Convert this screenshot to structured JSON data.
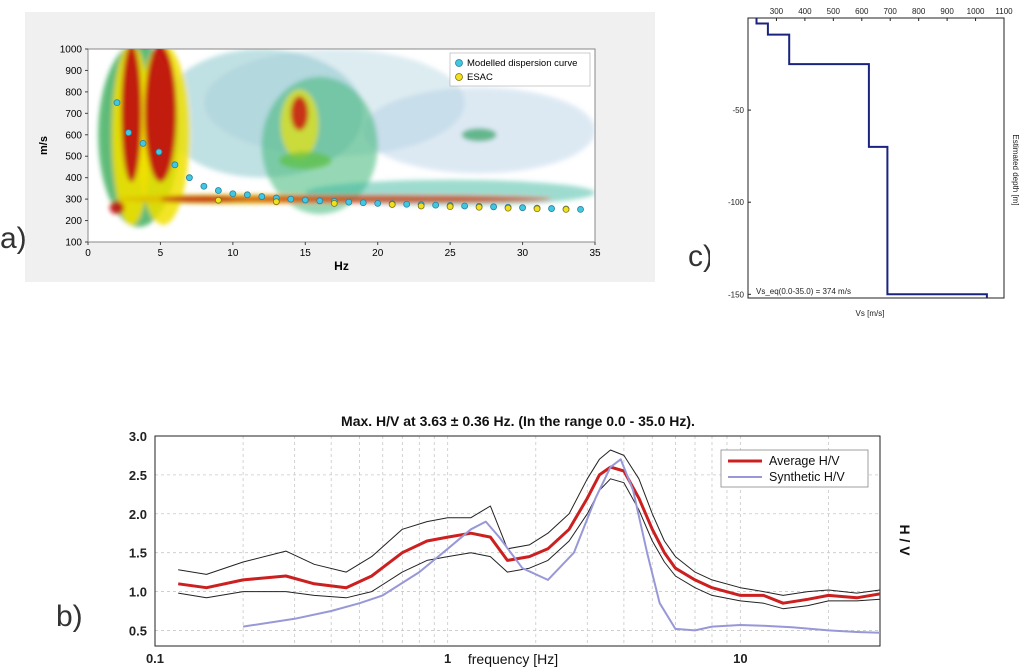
{
  "panels": {
    "a": "a)",
    "b": "b)",
    "c": "c)"
  },
  "chart_data": [
    {
      "id": "a",
      "type": "heatmap",
      "xlabel": "Hz",
      "ylabel": "m/s",
      "xlim": [
        0,
        35
      ],
      "ylim": [
        100,
        1000
      ],
      "xticks": [
        0,
        5,
        10,
        15,
        20,
        25,
        30,
        35
      ],
      "yticks": [
        100,
        200,
        300,
        400,
        500,
        600,
        700,
        800,
        900,
        1000
      ],
      "legend_position": "top-right",
      "colors": {
        "modelled": "#40c8e0",
        "esac": "#f0e020",
        "high": "#c00000",
        "mid": "#f0d000",
        "low": "#40a8a8"
      },
      "series": [
        {
          "name": "Modelled dispersion curve",
          "x": [
            2,
            2.8,
            3.8,
            4.9,
            6,
            7,
            8,
            9,
            10,
            11,
            12,
            13,
            14,
            15,
            16,
            17,
            18,
            19,
            20,
            21,
            22,
            23,
            24,
            25,
            26,
            27,
            28,
            29,
            30,
            31,
            32,
            33,
            34
          ],
          "y": [
            750,
            610,
            560,
            520,
            460,
            400,
            360,
            340,
            325,
            320,
            312,
            305,
            300,
            296,
            292,
            290,
            286,
            283,
            280,
            278,
            276,
            274,
            272,
            270,
            268,
            266,
            264,
            262,
            260,
            258,
            256,
            254,
            252
          ]
        },
        {
          "name": "ESAC",
          "x": [
            9,
            13,
            17,
            21,
            23,
            25,
            27,
            29,
            31,
            33
          ],
          "y": [
            295,
            288,
            280,
            275,
            268,
            265,
            262,
            258,
            255,
            252
          ]
        }
      ]
    },
    {
      "id": "b",
      "type": "line",
      "title": "Max. H/V at 3.63 ± 0.36 Hz. (In the range 0.0 - 35.0 Hz).",
      "xlabel": "frequency [Hz]",
      "ylabel": "H / V",
      "xscale": "log",
      "xlim": [
        0.1,
        30
      ],
      "ylim": [
        0.3,
        3.0
      ],
      "xticks": [
        0.1,
        1,
        10
      ],
      "yticks": [
        0.5,
        1.0,
        1.5,
        2.0,
        2.5,
        3.0
      ],
      "yticklabels": [
        "0.5",
        "1.0",
        "1.5",
        "2.0",
        "2.5",
        "3.0"
      ],
      "grid": true,
      "legend_position": "top-right",
      "colors": {
        "average": "#cc2020",
        "synthetic": "#9898d8",
        "bounds": "#222222"
      },
      "series": [
        {
          "name": "Average H/V",
          "x": [
            0.12,
            0.15,
            0.2,
            0.28,
            0.35,
            0.45,
            0.55,
            0.7,
            0.85,
            1.0,
            1.2,
            1.4,
            1.6,
            1.9,
            2.2,
            2.6,
            3.0,
            3.3,
            3.6,
            4.0,
            4.5,
            5.0,
            5.5,
            6.0,
            7.0,
            8.0,
            10.0,
            12.0,
            14.0,
            17.0,
            20.0,
            25.0,
            30.0
          ],
          "y": [
            1.1,
            1.05,
            1.15,
            1.2,
            1.1,
            1.05,
            1.2,
            1.5,
            1.65,
            1.7,
            1.75,
            1.7,
            1.4,
            1.45,
            1.55,
            1.8,
            2.2,
            2.5,
            2.6,
            2.55,
            2.2,
            1.8,
            1.5,
            1.3,
            1.15,
            1.05,
            0.95,
            0.95,
            0.85,
            0.9,
            0.95,
            0.92,
            0.97
          ]
        },
        {
          "name": "Synthetic H/V",
          "x": [
            0.2,
            0.3,
            0.4,
            0.5,
            0.6,
            0.8,
            1.0,
            1.2,
            1.35,
            1.5,
            1.8,
            2.2,
            2.7,
            3.2,
            3.6,
            3.9,
            4.3,
            4.8,
            5.3,
            6.0,
            7.0,
            8.0,
            10.0,
            12.0,
            15.0,
            20.0,
            25.0,
            30.0
          ],
          "y": [
            0.55,
            0.65,
            0.75,
            0.85,
            0.95,
            1.25,
            1.55,
            1.8,
            1.9,
            1.7,
            1.3,
            1.15,
            1.5,
            2.2,
            2.6,
            2.7,
            2.3,
            1.5,
            0.85,
            0.52,
            0.5,
            0.55,
            0.57,
            0.56,
            0.54,
            0.5,
            0.48,
            0.47
          ]
        },
        {
          "x": [
            0.12,
            0.15,
            0.2,
            0.28,
            0.35,
            0.45,
            0.55,
            0.7,
            0.85,
            1.0,
            1.2,
            1.4,
            1.6,
            1.9,
            2.2,
            2.6,
            3.0,
            3.3,
            3.6,
            4.0,
            4.5,
            5.0,
            5.5,
            6.0,
            7.0,
            8.0,
            10.0,
            12.0,
            14.0,
            17.0,
            20.0,
            25.0,
            30.0
          ],
          "y": [
            1.28,
            1.22,
            1.38,
            1.52,
            1.35,
            1.25,
            1.45,
            1.8,
            1.9,
            1.95,
            1.95,
            2.1,
            1.55,
            1.6,
            1.75,
            2.0,
            2.45,
            2.7,
            2.82,
            2.75,
            2.45,
            2.0,
            1.65,
            1.45,
            1.25,
            1.15,
            1.05,
            1.0,
            0.95,
            1.0,
            1.02,
            0.98,
            1.02
          ]
        },
        {
          "x": [
            0.12,
            0.15,
            0.2,
            0.28,
            0.35,
            0.45,
            0.55,
            0.7,
            0.85,
            1.0,
            1.2,
            1.4,
            1.6,
            1.9,
            2.2,
            2.6,
            3.0,
            3.3,
            3.6,
            4.0,
            4.5,
            5.0,
            5.5,
            6.0,
            7.0,
            8.0,
            10.0,
            12.0,
            14.0,
            17.0,
            20.0,
            25.0,
            30.0
          ],
          "y": [
            0.98,
            0.92,
            1.0,
            1.0,
            0.95,
            0.92,
            1.0,
            1.25,
            1.4,
            1.45,
            1.5,
            1.45,
            1.25,
            1.3,
            1.4,
            1.65,
            2.0,
            2.3,
            2.45,
            2.4,
            2.05,
            1.65,
            1.38,
            1.2,
            1.05,
            0.95,
            0.88,
            0.85,
            0.78,
            0.82,
            0.88,
            0.88,
            0.9
          ]
        }
      ]
    },
    {
      "id": "c",
      "type": "line",
      "xlabel": "Vs [m/s]",
      "ylabel": "Estimated depth [m]",
      "annotation": "Vs_eq(0.0-35.0) = 374 m/s",
      "xlim": [
        200,
        1100
      ],
      "ylim": [
        -152,
        0
      ],
      "xticks": [
        300,
        400,
        500,
        600,
        700,
        800,
        900,
        1000,
        1100
      ],
      "yticks": [
        -50,
        -100,
        -150
      ],
      "x_axis_position": "top",
      "y_axis_position": "right",
      "colors": {
        "profile": "#1a237e"
      },
      "series": [
        {
          "x": [
            230,
            230,
            270,
            270,
            345,
            345,
            625,
            625,
            690,
            690,
            1040,
            1040
          ],
          "y": [
            0,
            -3,
            -3,
            -9,
            -9,
            -25,
            -25,
            -70,
            -70,
            -150,
            -150,
            -152
          ]
        }
      ]
    }
  ]
}
